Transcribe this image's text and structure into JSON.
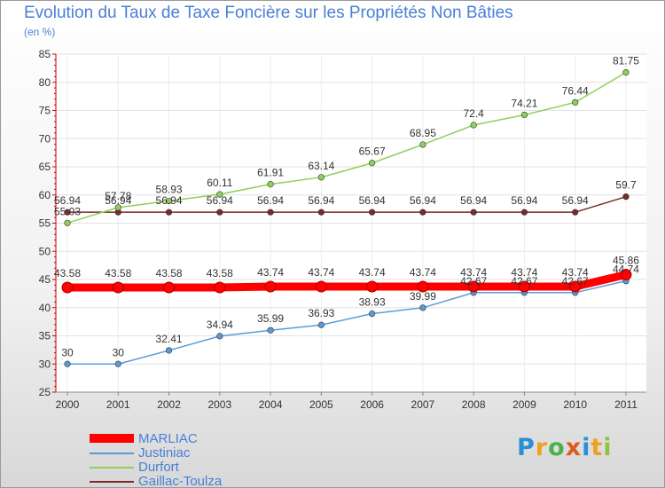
{
  "chart_data": {
    "type": "line",
    "title": "Evolution du Taux de Taxe Foncière sur les Propriétés Non Bâties",
    "ylabel": "(en %)",
    "xlabel": "",
    "categories": [
      "2000",
      "2001",
      "2002",
      "2003",
      "2004",
      "2005",
      "2006",
      "2007",
      "2008",
      "2009",
      "2010",
      "2011"
    ],
    "ylim": [
      25,
      85
    ],
    "yticks": [
      "25",
      "30",
      "35",
      "40",
      "45",
      "50",
      "55",
      "60",
      "65",
      "70",
      "75",
      "80",
      "85"
    ],
    "grid": true,
    "legend_position": "bottom-left",
    "series": [
      {
        "name": "MARLIAC",
        "color": "#ff0000",
        "values": [
          43.58,
          43.58,
          43.58,
          43.58,
          43.74,
          43.74,
          43.74,
          43.74,
          43.74,
          43.74,
          43.74,
          45.86
        ],
        "labels": [
          "43.58",
          "43.58",
          "43.58",
          "43.58",
          "43.74",
          "43.74",
          "43.74",
          "43.74",
          "43.74",
          "43.74",
          "43.74",
          "45.86"
        ]
      },
      {
        "name": "Justiniac",
        "color": "#5b9bd5",
        "values": [
          30,
          30,
          32.41,
          34.94,
          35.99,
          36.93,
          38.93,
          39.99,
          42.67,
          42.67,
          42.67,
          44.74
        ],
        "labels": [
          "30",
          "30",
          "32.41",
          "34.94",
          "35.99",
          "36.93",
          "38.93",
          "39.99",
          "42.67",
          "42.67",
          "42.67",
          "44.74"
        ]
      },
      {
        "name": "Durfort",
        "color": "#8fd05a",
        "values": [
          55.03,
          57.78,
          58.93,
          60.11,
          61.91,
          63.14,
          65.67,
          68.95,
          72.4,
          74.21,
          76.44,
          81.75
        ],
        "labels": [
          "55.03",
          "57.78",
          "58.93",
          "60.11",
          "61.91",
          "63.14",
          "65.67",
          "68.95",
          "72.4",
          "74.21",
          "76.44",
          "81.75"
        ]
      },
      {
        "name": "Gaillac-Toulza",
        "color": "#7a2a2a",
        "values": [
          56.94,
          56.94,
          56.94,
          56.94,
          56.94,
          56.94,
          56.94,
          56.94,
          56.94,
          56.94,
          56.94,
          59.7
        ],
        "labels": [
          "56.94",
          "56.94",
          "56.94",
          "56.94",
          "56.94",
          "56.94",
          "56.94",
          "56.94",
          "56.94",
          "56.94",
          "56.94",
          "59.7"
        ]
      }
    ]
  },
  "legend": {
    "items": [
      {
        "label": "MARLIAC",
        "color": "#ff0000"
      },
      {
        "label": "Justiniac",
        "color": "#5b9bd5"
      },
      {
        "label": "Durfort",
        "color": "#8fd05a"
      },
      {
        "label": "Gaillac-Toulza",
        "color": "#7a2a2a"
      }
    ]
  },
  "brand": {
    "letters": [
      "P",
      "r",
      "o",
      "x",
      "i",
      "t",
      "i"
    ],
    "colors": [
      "#2b8fd6",
      "#f0a020",
      "#4caf50",
      "#e05a20",
      "#2b8fd6",
      "#f0a020",
      "#8cc63f"
    ]
  }
}
